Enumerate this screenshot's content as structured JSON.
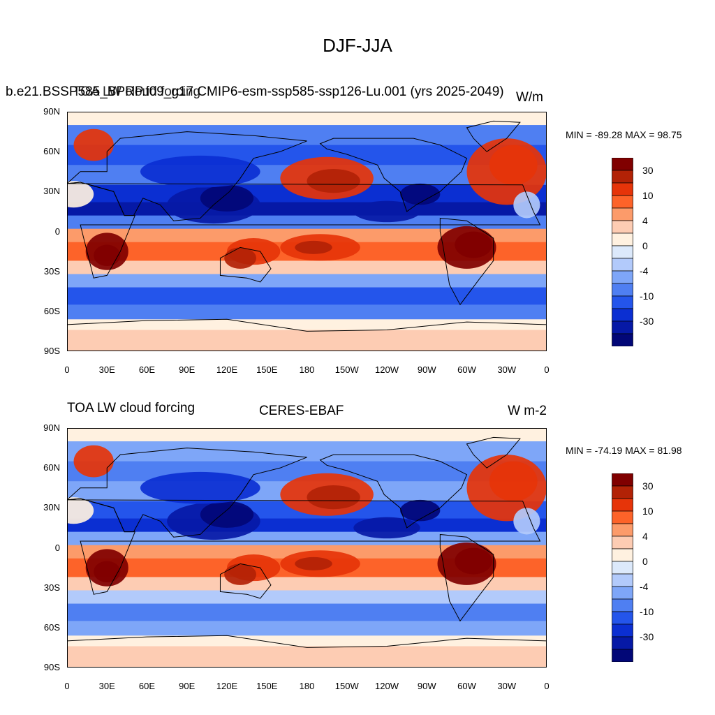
{
  "figure": {
    "title": "DJF-JJA"
  },
  "panels": [
    {
      "left_title": "b.e21.BSSP585_BPRP.f09_g17.CMIP6-esm-ssp585-ssp126-Lu.001 (yrs 2025-2049)",
      "overlay_title": "TOA LW cloud forcing",
      "right_title": "W/m",
      "minmax": "MIN = -89.28 MAX =  98.75",
      "lat_ticks": [
        "90N",
        "60N",
        "30N",
        "0",
        "30S",
        "60S",
        "90S"
      ],
      "lon_ticks": [
        "0",
        "30E",
        "60E",
        "90E",
        "120E",
        "150E",
        "180",
        "150W",
        "120W",
        "90W",
        "60W",
        "30W",
        "0"
      ],
      "colorbar_labels": [
        "30",
        "10",
        "4",
        "0",
        "-4",
        "-10",
        "-30"
      ]
    },
    {
      "left_title": "TOA LW cloud forcing",
      "center_title": "CERES-EBAF",
      "right_title": "W m-2",
      "minmax": "MIN = -74.19 MAX =  81.98",
      "lat_ticks": [
        "90N",
        "60N",
        "30N",
        "0",
        "30S",
        "60S",
        "90S"
      ],
      "lon_ticks": [
        "0",
        "30E",
        "60E",
        "90E",
        "120E",
        "150E",
        "180",
        "150W",
        "120W",
        "90W",
        "60W",
        "30W",
        "0"
      ],
      "colorbar_labels": [
        "30",
        "10",
        "4",
        "0",
        "-4",
        "-10",
        "-30"
      ]
    }
  ],
  "colorbar_colors": [
    "#800000",
    "#b22206",
    "#e63409",
    "#fd6329",
    "#fc9b6a",
    "#fdccb3",
    "#fff1e0",
    "#dce9fb",
    "#b2cafb",
    "#7ea6f8",
    "#4f7ff2",
    "#2455eb",
    "#0b2fd2",
    "#0619a6",
    "#020777"
  ],
  "map_field": {
    "description_bands": "zonal bands of warm (positive) and cool (negative) anomalies",
    "land_outline_color": "#000000"
  }
}
